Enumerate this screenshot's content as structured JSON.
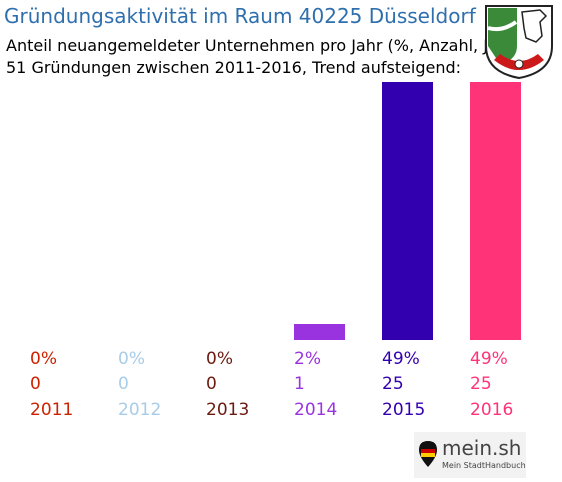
{
  "title": "Gründungsaktivität im Raum 40225 Düsseldorf",
  "subtitle_1": "Anteil neuangemeldeter Unternehmen pro Jahr (%, Anzahl, Jahr)",
  "subtitle_2": "51 Gründungen zwischen 2011-2016, Trend aufsteigend:",
  "logo": {
    "name": "mein.sh",
    "tagline": "Mein StadtHandbuch"
  },
  "chart_data": {
    "type": "bar",
    "categories": [
      "2011",
      "2012",
      "2013",
      "2014",
      "2015",
      "2016"
    ],
    "values": [
      0,
      0,
      0,
      1,
      25,
      25
    ],
    "percent_labels": [
      "0%",
      "0%",
      "0%",
      "2%",
      "49%",
      "49%"
    ],
    "count_labels": [
      "0",
      "0",
      "0",
      "1",
      "25",
      "25"
    ],
    "colors": [
      "#cc2200",
      "#a8cce8",
      "#6b1a10",
      "#9933e0",
      "#3300b0",
      "#ff3377"
    ],
    "ylim": [
      0,
      25
    ]
  }
}
